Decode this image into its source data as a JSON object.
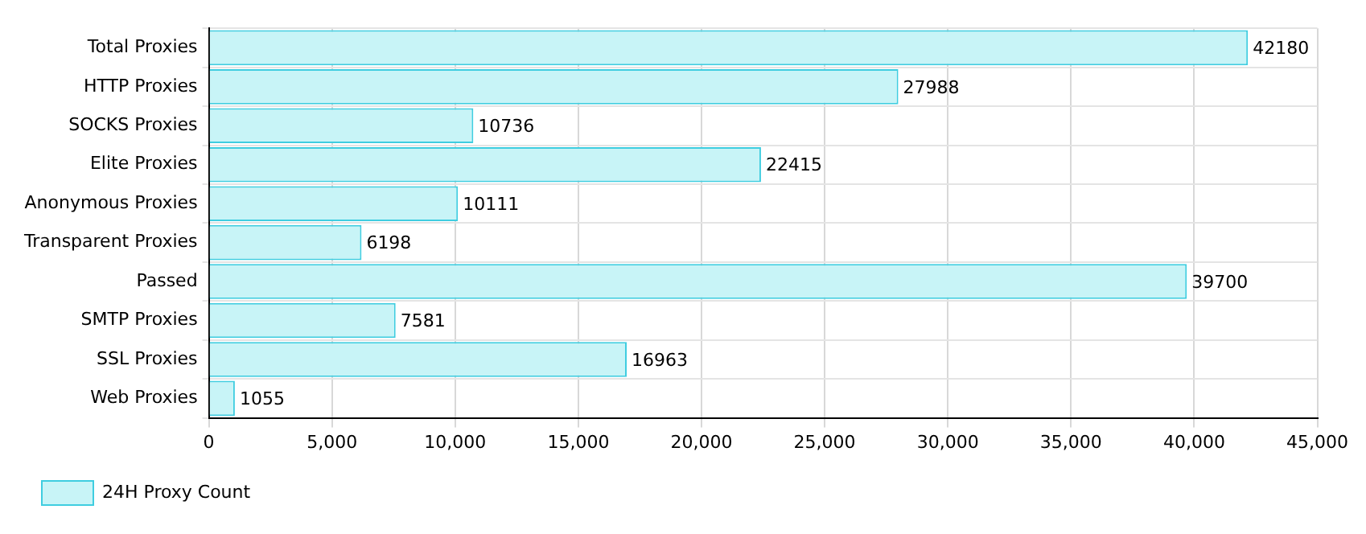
{
  "chart_data": {
    "type": "bar",
    "orientation": "horizontal",
    "categories": [
      "Total Proxies",
      "HTTP Proxies",
      "SOCKS Proxies",
      "Elite Proxies",
      "Anonymous Proxies",
      "Transparent Proxies",
      "Passed",
      "SMTP Proxies",
      "SSL Proxies",
      "Web Proxies"
    ],
    "series": [
      {
        "name": "24H Proxy Count",
        "color": "#c8f4f7",
        "values": [
          42180,
          27988,
          10736,
          22415,
          10111,
          6198,
          39700,
          7581,
          16963,
          1055
        ]
      }
    ],
    "xlim": [
      0,
      45000
    ],
    "xticks": [
      0,
      {
        "value": 5000,
        "label": "5,000"
      },
      {
        "value": 10000,
        "label": "10,000"
      },
      {
        "value": 15000,
        "label": "15,000"
      },
      {
        "value": 20000,
        "label": "20,000"
      },
      {
        "value": 25000,
        "label": "25,000"
      },
      {
        "value": 30000,
        "label": "30,000"
      },
      {
        "value": 35000,
        "label": "35,000"
      },
      {
        "value": 40000,
        "label": "40,000"
      },
      {
        "value": 45000,
        "label": "45,000"
      }
    ],
    "grid": true,
    "legend": "bottom left",
    "data_labels": true
  }
}
